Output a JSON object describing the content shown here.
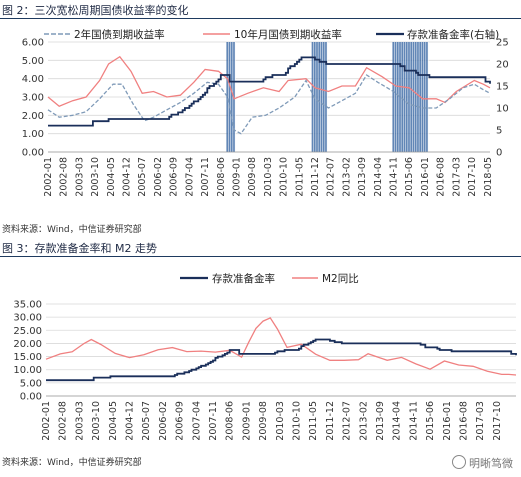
{
  "figures": {
    "fig2_title": "图 2：三次宽松周期国债收益率的变化",
    "fig3_title": "图 3：存款准备金率和 M2 走势",
    "fig2_source": "资料来源：Wind，中信证券研究部",
    "fig3_source": "资料来源：Wind，中信证券研究部",
    "watermark": "明晰笃微"
  },
  "chart_data": [
    {
      "type": "line",
      "title": "图 2：三次宽松周期国债收益率的变化",
      "x_start": "2002-01",
      "x_end": "2018-06",
      "x_tick_labels": [
        "2002-01",
        "2002-08",
        "2003-03",
        "2003-10",
        "2004-05",
        "2004-12",
        "2005-07",
        "2006-02",
        "2006-09",
        "2007-04",
        "2007-11",
        "2008-06",
        "2009-01",
        "2009-08",
        "2010-03",
        "2010-10",
        "2011-05",
        "2011-12",
        "2012-07",
        "2013-02",
        "2013-09",
        "2014-04",
        "2014-11",
        "2015-06",
        "2016-01",
        "2016-08",
        "2017-03",
        "2017-10",
        "2018-05"
      ],
      "ylim": [
        0,
        6
      ],
      "y_ticks": [
        "0.00",
        "1.00",
        "2.00",
        "3.00",
        "4.00",
        "5.00",
        "6.00"
      ],
      "y2lim": [
        0,
        25
      ],
      "y2_ticks": [
        "0",
        "5",
        "10",
        "15",
        "20",
        "25"
      ],
      "legend_position": "top",
      "shaded_periods": [
        [
          "2008-09",
          "2008-12"
        ],
        [
          "2011-11",
          "2012-05"
        ],
        [
          "2014-11",
          "2016-02"
        ]
      ],
      "colors": {
        "y2": "#7f9ab8",
        "y10": "#f08080",
        "rrr": "#1a2f5a",
        "shade": "#2c5d9e"
      },
      "series": [
        {
          "name": "2年国债到期收益率",
          "axis": "left",
          "style": "dashed",
          "points": [
            [
              "2002-01",
              2.3
            ],
            [
              "2002-06",
              1.9
            ],
            [
              "2002-12",
              2.0
            ],
            [
              "2003-06",
              2.2
            ],
            [
              "2003-12",
              2.9
            ],
            [
              "2004-06",
              3.7
            ],
            [
              "2004-10",
              3.7
            ],
            [
              "2005-03",
              2.6
            ],
            [
              "2005-08",
              1.7
            ],
            [
              "2005-12",
              1.9
            ],
            [
              "2006-06",
              2.3
            ],
            [
              "2006-12",
              2.7
            ],
            [
              "2007-06",
              3.2
            ],
            [
              "2007-12",
              3.8
            ],
            [
              "2008-05",
              3.7
            ],
            [
              "2008-09",
              3.0
            ],
            [
              "2008-12",
              1.2
            ],
            [
              "2009-03",
              1.0
            ],
            [
              "2009-08",
              1.9
            ],
            [
              "2010-02",
              2.0
            ],
            [
              "2010-08",
              2.4
            ],
            [
              "2011-03",
              3.0
            ],
            [
              "2011-08",
              3.9
            ],
            [
              "2011-12",
              2.9
            ],
            [
              "2012-06",
              2.4
            ],
            [
              "2012-12",
              2.8
            ],
            [
              "2013-06",
              3.2
            ],
            [
              "2013-11",
              4.2
            ],
            [
              "2014-04",
              3.8
            ],
            [
              "2014-11",
              3.3
            ],
            [
              "2015-06",
              2.6
            ],
            [
              "2015-12",
              2.4
            ],
            [
              "2016-06",
              2.4
            ],
            [
              "2016-12",
              2.9
            ],
            [
              "2017-06",
              3.5
            ],
            [
              "2017-11",
              3.7
            ],
            [
              "2018-03",
              3.4
            ],
            [
              "2018-06",
              3.2
            ]
          ]
        },
        {
          "name": "10年月国债到期收益率",
          "axis": "left",
          "style": "solid",
          "points": [
            [
              "2002-01",
              3.0
            ],
            [
              "2002-06",
              2.5
            ],
            [
              "2002-12",
              2.8
            ],
            [
              "2003-06",
              3.0
            ],
            [
              "2003-12",
              3.9
            ],
            [
              "2004-04",
              4.8
            ],
            [
              "2004-09",
              5.2
            ],
            [
              "2005-02",
              4.4
            ],
            [
              "2005-07",
              3.2
            ],
            [
              "2005-12",
              3.3
            ],
            [
              "2006-06",
              3.0
            ],
            [
              "2006-12",
              3.1
            ],
            [
              "2007-06",
              3.8
            ],
            [
              "2007-11",
              4.5
            ],
            [
              "2008-05",
              4.4
            ],
            [
              "2008-09",
              4.0
            ],
            [
              "2008-12",
              2.9
            ],
            [
              "2009-06",
              3.2
            ],
            [
              "2010-01",
              3.5
            ],
            [
              "2010-08",
              3.3
            ],
            [
              "2010-12",
              3.9
            ],
            [
              "2011-08",
              4.0
            ],
            [
              "2011-12",
              3.5
            ],
            [
              "2012-06",
              3.3
            ],
            [
              "2012-12",
              3.6
            ],
            [
              "2013-06",
              3.6
            ],
            [
              "2013-11",
              4.6
            ],
            [
              "2014-06",
              4.1
            ],
            [
              "2014-12",
              3.6
            ],
            [
              "2015-06",
              3.5
            ],
            [
              "2015-12",
              2.9
            ],
            [
              "2016-06",
              2.9
            ],
            [
              "2016-10",
              2.7
            ],
            [
              "2017-03",
              3.3
            ],
            [
              "2017-11",
              3.9
            ],
            [
              "2018-03",
              3.7
            ],
            [
              "2018-06",
              3.5
            ]
          ]
        },
        {
          "name": "存款准备金率(右轴)",
          "axis": "right",
          "style": "step",
          "points": [
            [
              "2002-01",
              6.0
            ],
            [
              "2003-09",
              7.0
            ],
            [
              "2004-04",
              7.5
            ],
            [
              "2006-07",
              8.0
            ],
            [
              "2006-08",
              8.5
            ],
            [
              "2006-11",
              9.0
            ],
            [
              "2007-01",
              9.5
            ],
            [
              "2007-02",
              10.0
            ],
            [
              "2007-04",
              10.5
            ],
            [
              "2007-05",
              11.0
            ],
            [
              "2007-06",
              11.5
            ],
            [
              "2007-08",
              12.0
            ],
            [
              "2007-09",
              12.5
            ],
            [
              "2007-10",
              13.0
            ],
            [
              "2007-11",
              13.5
            ],
            [
              "2007-12",
              14.5
            ],
            [
              "2008-01",
              15.0
            ],
            [
              "2008-03",
              15.5
            ],
            [
              "2008-04",
              16.0
            ],
            [
              "2008-05",
              16.5
            ],
            [
              "2008-06",
              17.5
            ],
            [
              "2008-10",
              16.0
            ],
            [
              "2009-01",
              16.0
            ],
            [
              "2010-01",
              16.5
            ],
            [
              "2010-02",
              17.0
            ],
            [
              "2010-05",
              17.5
            ],
            [
              "2010-11",
              18.0
            ],
            [
              "2010-12",
              19.0
            ],
            [
              "2011-01",
              19.5
            ],
            [
              "2011-03",
              20.0
            ],
            [
              "2011-04",
              20.5
            ],
            [
              "2011-05",
              21.0
            ],
            [
              "2011-06",
              21.5
            ],
            [
              "2011-12",
              21.0
            ],
            [
              "2012-02",
              20.5
            ],
            [
              "2012-05",
              20.0
            ],
            [
              "2015-02",
              19.5
            ],
            [
              "2015-04",
              18.5
            ],
            [
              "2015-09",
              18.0
            ],
            [
              "2015-10",
              17.5
            ],
            [
              "2016-03",
              17.0
            ],
            [
              "2018-04",
              16.0
            ],
            [
              "2018-06",
              15.5
            ]
          ]
        }
      ]
    },
    {
      "type": "line",
      "title": "图 3：存款准备金率和 M2 走势",
      "x_start": "2002-01",
      "x_end": "2018-06",
      "x_tick_labels": [
        "2002-01",
        "2002-08",
        "2003-03",
        "2003-10",
        "2004-05",
        "2004-12",
        "2005-07",
        "2006-02",
        "2006-09",
        "2007-04",
        "2007-11",
        "2008-06",
        "2009-01",
        "2009-08",
        "2010-03",
        "2010-10",
        "2011-05",
        "2011-12",
        "2012-07",
        "2013-02",
        "2013-09",
        "2014-04",
        "2014-11",
        "2015-06",
        "2016-01",
        "2016-08",
        "2017-03",
        "2017-10"
      ],
      "ylim": [
        0,
        35
      ],
      "y_ticks": [
        "0.00",
        "5.00",
        "10.00",
        "15.00",
        "20.00",
        "25.00",
        "30.00",
        "35.00"
      ],
      "legend_position": "top",
      "colors": {
        "rrr": "#1a2f5a",
        "m2": "#f08080"
      },
      "series": [
        {
          "name": "存款准备金率",
          "style": "step",
          "points": [
            [
              "2002-01",
              6.0
            ],
            [
              "2003-09",
              7.0
            ],
            [
              "2004-04",
              7.5
            ],
            [
              "2006-07",
              8.0
            ],
            [
              "2006-08",
              8.5
            ],
            [
              "2006-11",
              9.0
            ],
            [
              "2007-01",
              9.5
            ],
            [
              "2007-02",
              10.0
            ],
            [
              "2007-04",
              10.5
            ],
            [
              "2007-05",
              11.0
            ],
            [
              "2007-06",
              11.5
            ],
            [
              "2007-08",
              12.0
            ],
            [
              "2007-09",
              12.5
            ],
            [
              "2007-10",
              13.0
            ],
            [
              "2007-11",
              13.5
            ],
            [
              "2007-12",
              14.5
            ],
            [
              "2008-01",
              15.0
            ],
            [
              "2008-03",
              15.5
            ],
            [
              "2008-04",
              16.0
            ],
            [
              "2008-05",
              16.5
            ],
            [
              "2008-06",
              17.5
            ],
            [
              "2008-10",
              16.0
            ],
            [
              "2009-01",
              16.0
            ],
            [
              "2010-01",
              16.5
            ],
            [
              "2010-02",
              17.0
            ],
            [
              "2010-05",
              17.5
            ],
            [
              "2010-11",
              18.0
            ],
            [
              "2010-12",
              19.0
            ],
            [
              "2011-01",
              19.5
            ],
            [
              "2011-03",
              20.0
            ],
            [
              "2011-04",
              20.5
            ],
            [
              "2011-05",
              21.0
            ],
            [
              "2011-06",
              21.5
            ],
            [
              "2011-12",
              21.0
            ],
            [
              "2012-02",
              20.5
            ],
            [
              "2012-05",
              20.0
            ],
            [
              "2015-02",
              19.5
            ],
            [
              "2015-04",
              18.5
            ],
            [
              "2015-09",
              18.0
            ],
            [
              "2015-10",
              17.5
            ],
            [
              "2016-03",
              17.0
            ],
            [
              "2018-04",
              16.0
            ],
            [
              "2018-06",
              15.5
            ]
          ]
        },
        {
          "name": "M2同比",
          "style": "solid",
          "points": [
            [
              "2002-01",
              14.0
            ],
            [
              "2002-07",
              16.0
            ],
            [
              "2002-12",
              16.8
            ],
            [
              "2003-05",
              20.0
            ],
            [
              "2003-08",
              21.5
            ],
            [
              "2003-12",
              19.6
            ],
            [
              "2004-06",
              16.2
            ],
            [
              "2004-12",
              14.6
            ],
            [
              "2005-06",
              15.7
            ],
            [
              "2005-12",
              17.6
            ],
            [
              "2006-06",
              18.4
            ],
            [
              "2006-12",
              16.9
            ],
            [
              "2007-06",
              17.1
            ],
            [
              "2007-12",
              16.7
            ],
            [
              "2008-06",
              17.4
            ],
            [
              "2008-11",
              14.8
            ],
            [
              "2009-02",
              20.5
            ],
            [
              "2009-05",
              25.7
            ],
            [
              "2009-08",
              28.5
            ],
            [
              "2009-11",
              29.7
            ],
            [
              "2010-02",
              25.5
            ],
            [
              "2010-06",
              18.5
            ],
            [
              "2010-12",
              19.7
            ],
            [
              "2011-06",
              15.9
            ],
            [
              "2011-12",
              13.6
            ],
            [
              "2012-06",
              13.6
            ],
            [
              "2012-12",
              13.8
            ],
            [
              "2013-04",
              16.1
            ],
            [
              "2013-12",
              13.6
            ],
            [
              "2014-06",
              14.7
            ],
            [
              "2014-12",
              12.2
            ],
            [
              "2015-06",
              10.2
            ],
            [
              "2015-12",
              13.3
            ],
            [
              "2016-06",
              11.8
            ],
            [
              "2016-12",
              11.3
            ],
            [
              "2017-06",
              9.4
            ],
            [
              "2017-12",
              8.2
            ],
            [
              "2018-03",
              8.2
            ],
            [
              "2018-06",
              8.0
            ]
          ]
        }
      ]
    }
  ]
}
